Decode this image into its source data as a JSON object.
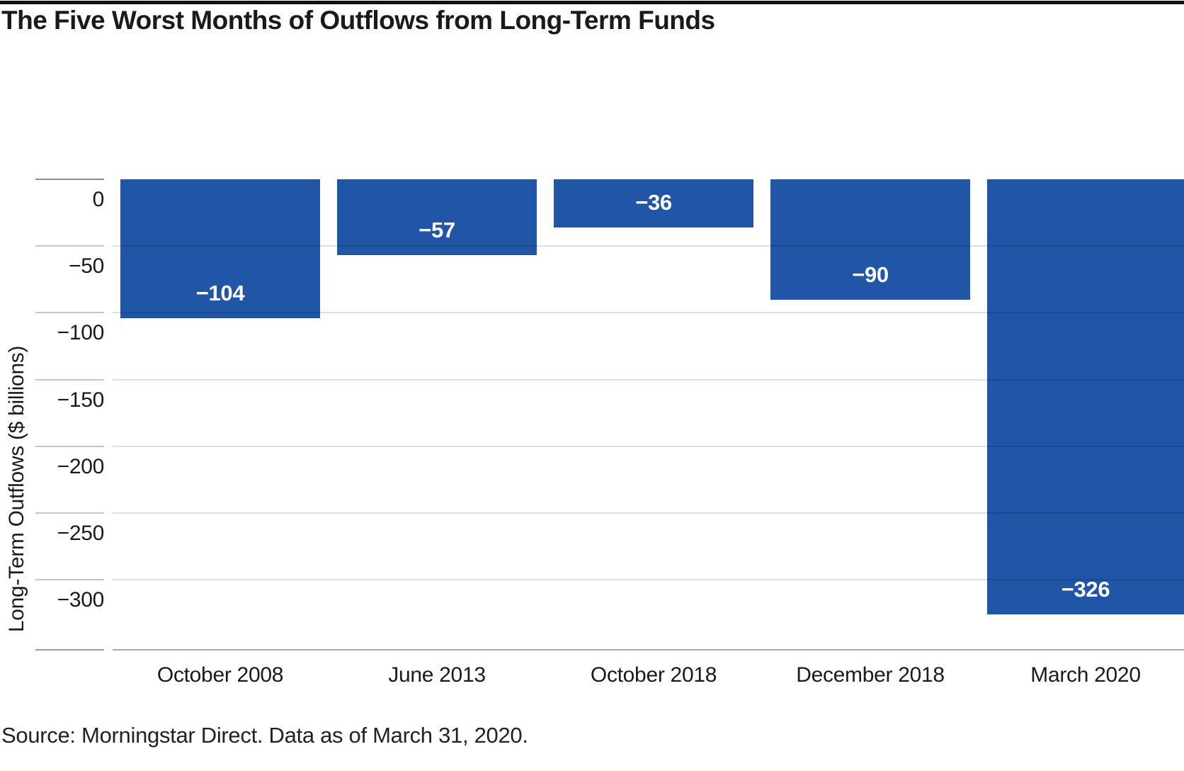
{
  "page": {
    "title": "The Five Worst Months of Outflows from Long-Term Funds",
    "source": "Source: Morningstar Direct. Data as of March 31, 2020."
  },
  "chart_data": {
    "type": "bar",
    "title": "The Five Worst Months of Outflows from Long-Term Funds",
    "xlabel": "",
    "ylabel": "Long-Term Outflows ($ billions)",
    "categories": [
      "October 2008",
      "June 2013",
      "October 2018",
      "December 2018",
      "March 2020"
    ],
    "values": [
      -104,
      -57,
      -36,
      -90,
      -326
    ],
    "value_labels": [
      "−104",
      "−57",
      "−36",
      "−90",
      "−326"
    ],
    "y_ticks": [
      0,
      -50,
      -100,
      -150,
      -200,
      -250,
      -300
    ],
    "y_tick_labels": [
      "0",
      "−50",
      "−100",
      "−150",
      "−200",
      "−250",
      "−300"
    ],
    "ylim": [
      0,
      -352
    ],
    "grid": true,
    "legend": "none",
    "bar_color": "#2156a6",
    "value_label_color": "#ffffff",
    "source": "Source: Morningstar Direct. Data as of March 31, 2020."
  }
}
